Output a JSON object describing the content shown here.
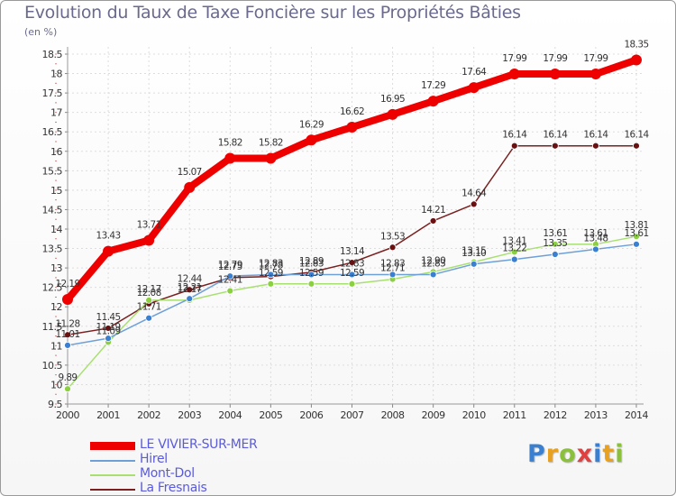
{
  "title": "Evolution du Taux de Taxe Foncière sur les Propriétés Bâties",
  "unit": "(en %)",
  "logo": {
    "letters": [
      "P",
      "r",
      "o",
      "x",
      "i",
      "t",
      "i"
    ],
    "colors": [
      "#3a7fd0",
      "#e8a020",
      "#8ac03a",
      "#e04040",
      "#3a7fd0",
      "#e8a020",
      "#8ac03a"
    ]
  },
  "chart_data": {
    "type": "line",
    "title": "Evolution du Taux de Taxe Foncière sur les Propriétés Bâties",
    "ylabel": "(en %)",
    "ylim": [
      9.5,
      18.5
    ],
    "yticks": [
      "9.5",
      "10",
      "10.5",
      "11",
      "11.5",
      "12",
      "12.5",
      "13",
      "13.5",
      "14",
      "14.5",
      "15",
      "15.5",
      "16",
      "16.5",
      "17",
      "17.5",
      "18",
      "18.5"
    ],
    "categories": [
      "2000",
      "2001",
      "2002",
      "2003",
      "2004",
      "2005",
      "2006",
      "2007",
      "2008",
      "2009",
      "2010",
      "2011",
      "2012",
      "2013",
      "2014"
    ],
    "series": [
      {
        "name": "LE VIVIER-SUR-MER",
        "color": "#ee0000",
        "values": [
          12.19,
          13.43,
          13.71,
          15.07,
          15.82,
          15.82,
          16.29,
          16.62,
          16.95,
          17.29,
          17.64,
          17.99,
          17.99,
          17.99,
          18.35
        ],
        "labels": [
          "12.19",
          "13.43",
          "13.71",
          "15.07",
          "15.82",
          "15.82",
          "16.29",
          "16.62",
          "16.95",
          "17.29",
          "17.64",
          "17.99",
          "17.99",
          "17.99",
          "18.35"
        ]
      },
      {
        "name": "Hirel",
        "color": "#6ea0d8",
        "values": [
          11.01,
          11.19,
          11.71,
          12.21,
          12.79,
          12.83,
          12.83,
          12.83,
          12.83,
          12.83,
          13.1,
          13.22,
          13.35,
          13.48,
          13.61
        ],
        "labels": [
          "11.01",
          "11.19",
          "11.71",
          "12.21",
          "12.79",
          "12.83",
          "12.83",
          "12.83",
          "12.83",
          "12.83",
          "13.10",
          "13.22",
          "13.35",
          "13.48",
          "13.61"
        ]
      },
      {
        "name": "Mont-Dol",
        "color": "#a8e070",
        "values": [
          9.89,
          11.09,
          12.17,
          12.17,
          12.41,
          12.59,
          12.59,
          12.59,
          12.71,
          12.9,
          13.15,
          13.41,
          13.61,
          13.61,
          13.81
        ],
        "labels": [
          "9.89",
          "11.09",
          "12.17",
          "12.17",
          "12.41",
          "12.59",
          "12.59",
          "12.59",
          "12.71",
          "12.90",
          "13.15",
          "13.41",
          "13.61",
          "13.61",
          "13.81"
        ]
      },
      {
        "name": "La Fresnais",
        "color": "#7a2020",
        "values": [
          11.28,
          11.45,
          12.08,
          12.44,
          12.75,
          12.78,
          12.89,
          13.14,
          13.53,
          14.21,
          14.64,
          16.14,
          16.14,
          16.14,
          16.14
        ],
        "labels": [
          "11.28",
          "11.45",
          "12.08",
          "12.44",
          "12.75",
          "12.78",
          "12.89",
          "13.14",
          "13.53",
          "14.21",
          "14.64",
          "16.14",
          "16.14",
          "16.14",
          "16.14"
        ]
      }
    ]
  }
}
